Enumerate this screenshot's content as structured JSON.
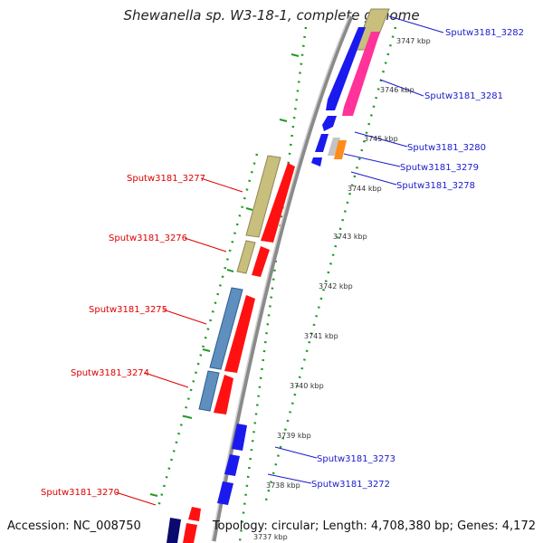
{
  "title": "Shewanella sp. W3-18-1, complete genome",
  "accession": "Accession: NC_008750",
  "topology": "Topology: circular; Length: 4,708,380 bp; Genes: 4,172",
  "colors": {
    "blue": "#1a1aee",
    "navy": "#0a0a6e",
    "magenta": "#ff3399",
    "red": "#ff1111",
    "khaki": "#c8bf7c",
    "steel": "#5f8fbf",
    "orange": "#ff8c1a",
    "lightgray": "#c4c4c4",
    "dotted": "#239923",
    "backbone": "#8a8a8a",
    "forward_label": "#1a1acc",
    "reverse_label": "#dd0000"
  },
  "ticks": [
    "3747 kbp",
    "3746 kbp",
    "3745 kbp",
    "3744 kbp",
    "3743 kbp",
    "3742 kbp",
    "3741 kbp",
    "3740 kbp",
    "3739 kbp",
    "3738 kbp",
    "3737 kbp"
  ],
  "forward_labels": [
    "Sputw3181_3282",
    "Sputw3181_3281",
    "Sputw3181_3280",
    "Sputw3181_3279",
    "Sputw3181_3278",
    "Sputw3181_3273",
    "Sputw3181_3272"
  ],
  "reverse_labels": [
    "Sputw3181_3277",
    "Sputw3181_3276",
    "Sputw3181_3275",
    "Sputw3181_3274",
    "Sputw3181_3270"
  ]
}
